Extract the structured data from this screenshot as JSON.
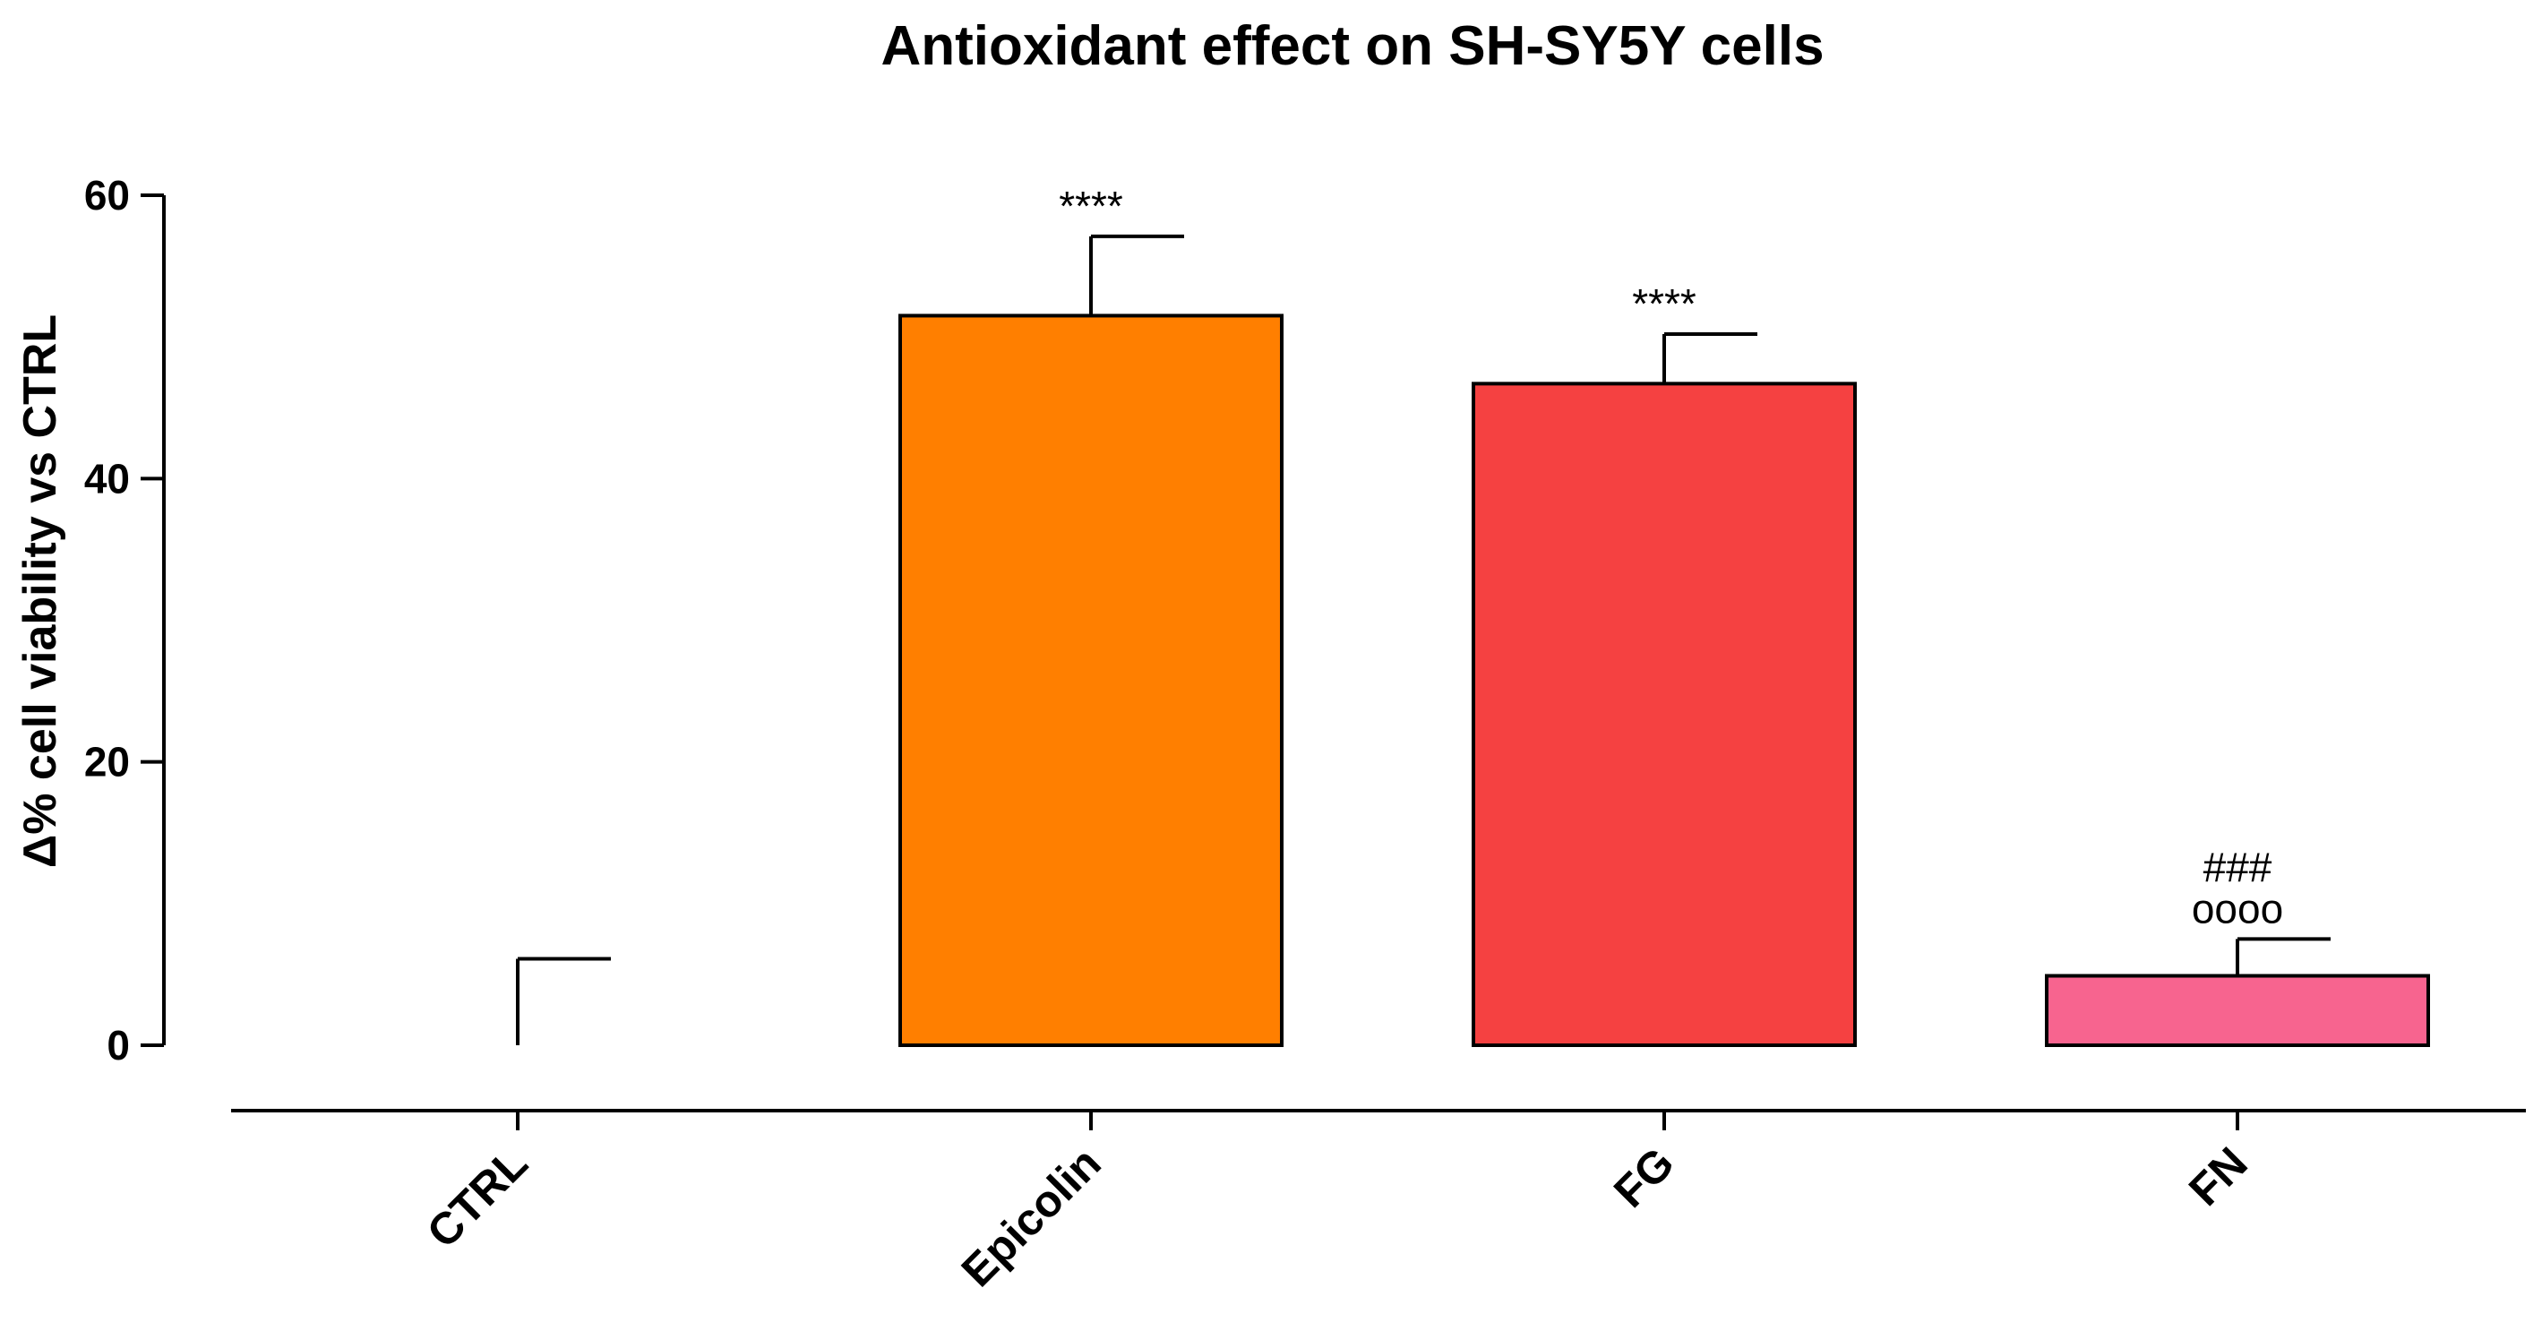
{
  "chart_data": {
    "type": "bar",
    "title": "Antioxidant effect on SH-SY5Y cells",
    "xlabel": "",
    "ylabel": "Δ% cell viability vs CTRL",
    "ylim": [
      0,
      60
    ],
    "yticks": [
      0,
      20,
      40,
      60
    ],
    "grid": false,
    "legend": "none",
    "categories": [
      "CTRL",
      "Epicolin",
      "FG",
      "FN"
    ],
    "values": [
      0,
      51.5,
      46.7,
      4.9
    ],
    "errors": [
      6.1,
      5.6,
      3.5,
      2.6
    ],
    "colors": [
      "#ffffff",
      "#ff7f00",
      "#f54141",
      "#f7648f"
    ],
    "annotations": [
      {
        "category": "Epicolin",
        "lines": [
          "****"
        ]
      },
      {
        "category": "FG",
        "lines": [
          "****"
        ]
      },
      {
        "category": "FN",
        "lines": [
          "###",
          "oooo"
        ]
      }
    ]
  }
}
